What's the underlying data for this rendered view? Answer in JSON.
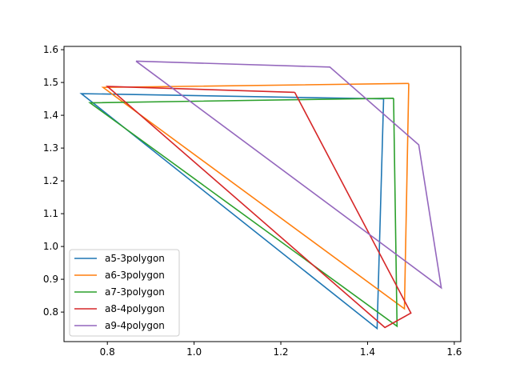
{
  "chart_data": {
    "type": "line",
    "title": "",
    "xlabel": "",
    "ylabel": "",
    "xlim": [
      0.7,
      1.615
    ],
    "ylim": [
      0.71,
      1.61
    ],
    "xticks": [
      0.8,
      1.0,
      1.2,
      1.4,
      1.6
    ],
    "xtick_labels": [
      "0.8",
      "1.0",
      "1.2",
      "1.4",
      "1.6"
    ],
    "yticks": [
      0.8,
      0.9,
      1.0,
      1.1,
      1.2,
      1.3,
      1.4,
      1.5,
      1.6
    ],
    "ytick_labels": [
      "0.8",
      "0.9",
      "1.0",
      "1.1",
      "1.2",
      "1.3",
      "1.4",
      "1.5",
      "1.6"
    ],
    "grid": false,
    "legend_position": "lower-left",
    "series": [
      {
        "name": "a5-3polygon",
        "color": "#1f77b4",
        "points": [
          [
            1.437,
            1.45
          ],
          [
            0.74,
            1.466
          ],
          [
            1.422,
            0.75
          ],
          [
            1.437,
            1.45
          ]
        ]
      },
      {
        "name": "a6-3polygon",
        "color": "#ff7f0e",
        "points": [
          [
            1.495,
            1.497
          ],
          [
            0.79,
            1.485
          ],
          [
            1.485,
            0.81
          ],
          [
            1.495,
            1.497
          ]
        ]
      },
      {
        "name": "a7-3polygon",
        "color": "#2ca02c",
        "points": [
          [
            1.46,
            1.452
          ],
          [
            0.76,
            1.438
          ],
          [
            1.468,
            0.757
          ],
          [
            1.46,
            1.452
          ]
        ]
      },
      {
        "name": "a8-4polygon",
        "color": "#d62728",
        "points": [
          [
            1.232,
            1.47
          ],
          [
            0.8,
            1.488
          ],
          [
            1.44,
            0.753
          ],
          [
            1.5,
            0.797
          ],
          [
            1.232,
            1.47
          ]
        ]
      },
      {
        "name": "a9-4polygon",
        "color": "#9467bd",
        "points": [
          [
            0.866,
            1.565
          ],
          [
            1.313,
            1.547
          ],
          [
            1.518,
            1.31
          ],
          [
            1.57,
            0.874
          ],
          [
            0.866,
            1.565
          ]
        ]
      }
    ]
  }
}
